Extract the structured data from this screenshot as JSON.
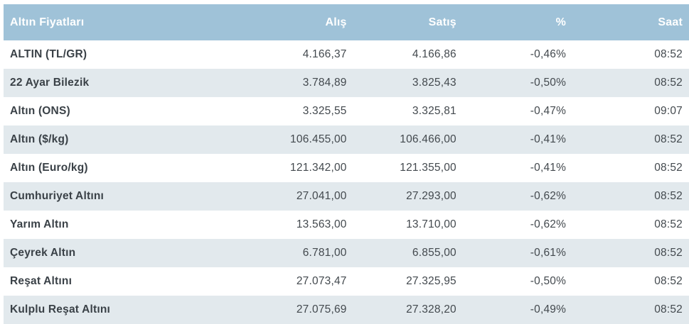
{
  "colors": {
    "header_bg": "#9fc2d8",
    "header_text": "#ffffff",
    "row_bg": "#ffffff",
    "row_alt_bg": "#e2e9ed",
    "label_text": "#3a4147",
    "value_text": "#43494e"
  },
  "chart_data": {
    "type": "table",
    "title": "Altın Fiyatları",
    "columns": {
      "title": "Altın Fiyatları",
      "buy": "Alış",
      "sell": "Satış",
      "percent": "%",
      "time": "Saat"
    },
    "rows": [
      {
        "label": "ALTIN (TL/GR)",
        "alis": "4.166,37",
        "satis": "4.166,86",
        "percent": "-0,46%",
        "saat": "08:52"
      },
      {
        "label": "22 Ayar Bilezik",
        "alis": "3.784,89",
        "satis": "3.825,43",
        "percent": "-0,50%",
        "saat": "08:52"
      },
      {
        "label": "Altın (ONS)",
        "alis": "3.325,55",
        "satis": "3.325,81",
        "percent": "-0,47%",
        "saat": "09:07"
      },
      {
        "label": "Altın ($/kg)",
        "alis": "106.455,00",
        "satis": "106.466,00",
        "percent": "-0,41%",
        "saat": "08:52"
      },
      {
        "label": "Altın (Euro/kg)",
        "alis": "121.342,00",
        "satis": "121.355,00",
        "percent": "-0,41%",
        "saat": "08:52"
      },
      {
        "label": "Cumhuriyet Altını",
        "alis": "27.041,00",
        "satis": "27.293,00",
        "percent": "-0,62%",
        "saat": "08:52"
      },
      {
        "label": "Yarım Altın",
        "alis": "13.563,00",
        "satis": "13.710,00",
        "percent": "-0,62%",
        "saat": "08:52"
      },
      {
        "label": "Çeyrek Altın",
        "alis": "6.781,00",
        "satis": "6.855,00",
        "percent": "-0,61%",
        "saat": "08:52"
      },
      {
        "label": "Reşat Altını",
        "alis": "27.073,47",
        "satis": "27.325,95",
        "percent": "-0,50%",
        "saat": "08:52"
      },
      {
        "label": "Kulplu Reşat Altını",
        "alis": "27.075,69",
        "satis": "27.328,20",
        "percent": "-0,49%",
        "saat": "08:52"
      }
    ]
  }
}
